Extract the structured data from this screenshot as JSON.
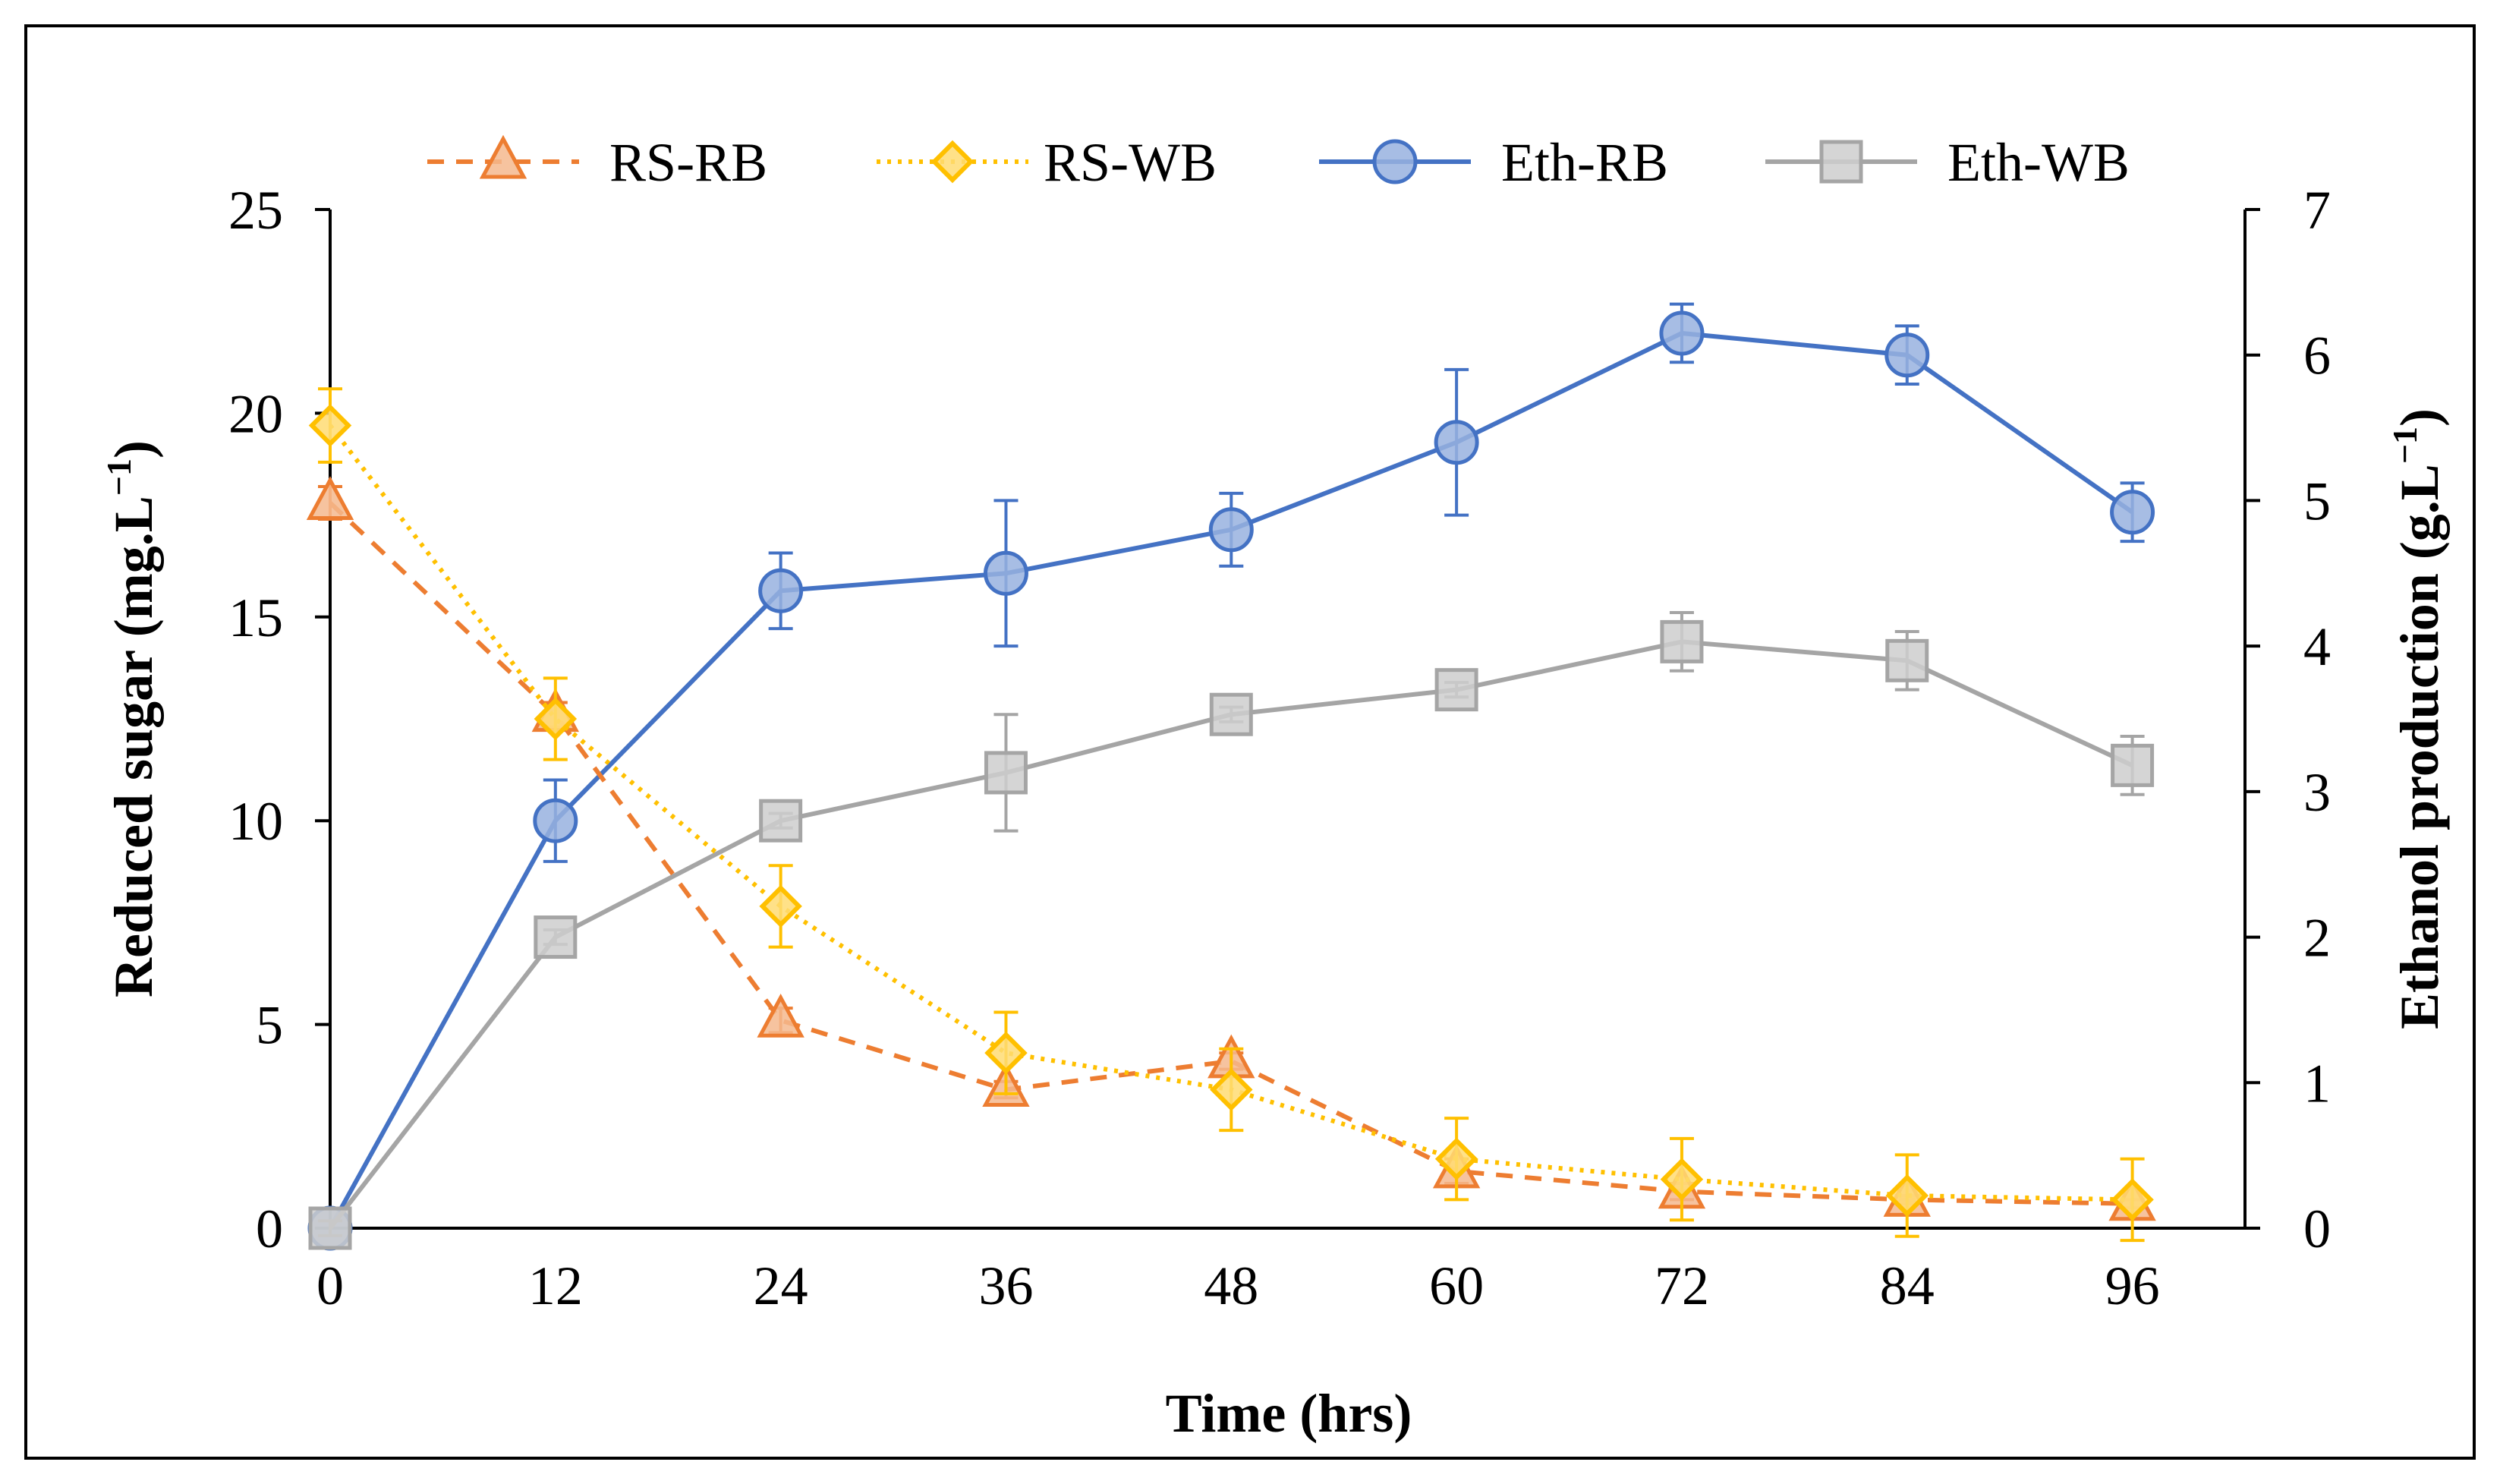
{
  "chart_data": {
    "type": "line",
    "title": "",
    "xlabel": "Time (hrs)",
    "ylabel_left": "Reduced sugar (mg.L",
    "ylabel_left_unit_exp": "−1",
    "ylabel_left_close": ")",
    "ylabel_right": "Ethanol production  (g.L",
    "ylabel_right_unit_exp": "−1",
    "ylabel_right_close": ")",
    "x": [
      0,
      12,
      24,
      36,
      48,
      60,
      72,
      84,
      96
    ],
    "x_ticks": [
      "0",
      "12",
      "24",
      "36",
      "48",
      "60",
      "72",
      "84",
      "96"
    ],
    "xlim": [
      0,
      102
    ],
    "ylim_left": [
      0,
      25
    ],
    "ylim_right": [
      0,
      7
    ],
    "y_ticks_left": [
      "0",
      "5",
      "10",
      "15",
      "20",
      "25"
    ],
    "y_ticks_right": [
      "0",
      "1",
      "2",
      "3",
      "4",
      "5",
      "6",
      "7"
    ],
    "series": [
      {
        "name": "RS-RB",
        "axis": "left",
        "color": "#ED7D31",
        "marker": "triangle",
        "line": "dashed",
        "values": [
          17.8,
          12.6,
          5.1,
          3.4,
          4.1,
          1.4,
          0.9,
          0.7,
          0.6
        ],
        "errors": [
          0.4,
          0.3,
          0.3,
          0.2,
          0.2,
          0.3,
          0.2,
          0.1,
          0.1
        ]
      },
      {
        "name": "RS-WB",
        "axis": "left",
        "color": "#FFC000",
        "marker": "diamond",
        "line": "dotted",
        "values": [
          19.7,
          12.5,
          7.9,
          4.3,
          3.4,
          1.7,
          1.2,
          0.8,
          0.7
        ],
        "errors": [
          0.9,
          1.0,
          1.0,
          1.0,
          1.0,
          1.0,
          1.0,
          1.0,
          1.0
        ]
      },
      {
        "name": "Eth-RB",
        "axis": "right",
        "color": "#4472C4",
        "marker": "circle",
        "line": "solid",
        "values": [
          0.0,
          2.8,
          4.38,
          4.5,
          4.8,
          5.4,
          6.15,
          6.0,
          4.92
        ],
        "errors": [
          0.05,
          0.28,
          0.26,
          0.5,
          0.25,
          0.5,
          0.2,
          0.2,
          0.2
        ]
      },
      {
        "name": "Eth-WB",
        "axis": "right",
        "color": "#A5A5A5",
        "marker": "square",
        "line": "solid",
        "values": [
          0.0,
          2.0,
          2.8,
          3.13,
          3.53,
          3.7,
          4.03,
          3.9,
          3.18
        ],
        "errors": [
          0.05,
          0.05,
          0.05,
          0.4,
          0.05,
          0.05,
          0.2,
          0.2,
          0.2
        ]
      }
    ],
    "legend_position": "top"
  }
}
